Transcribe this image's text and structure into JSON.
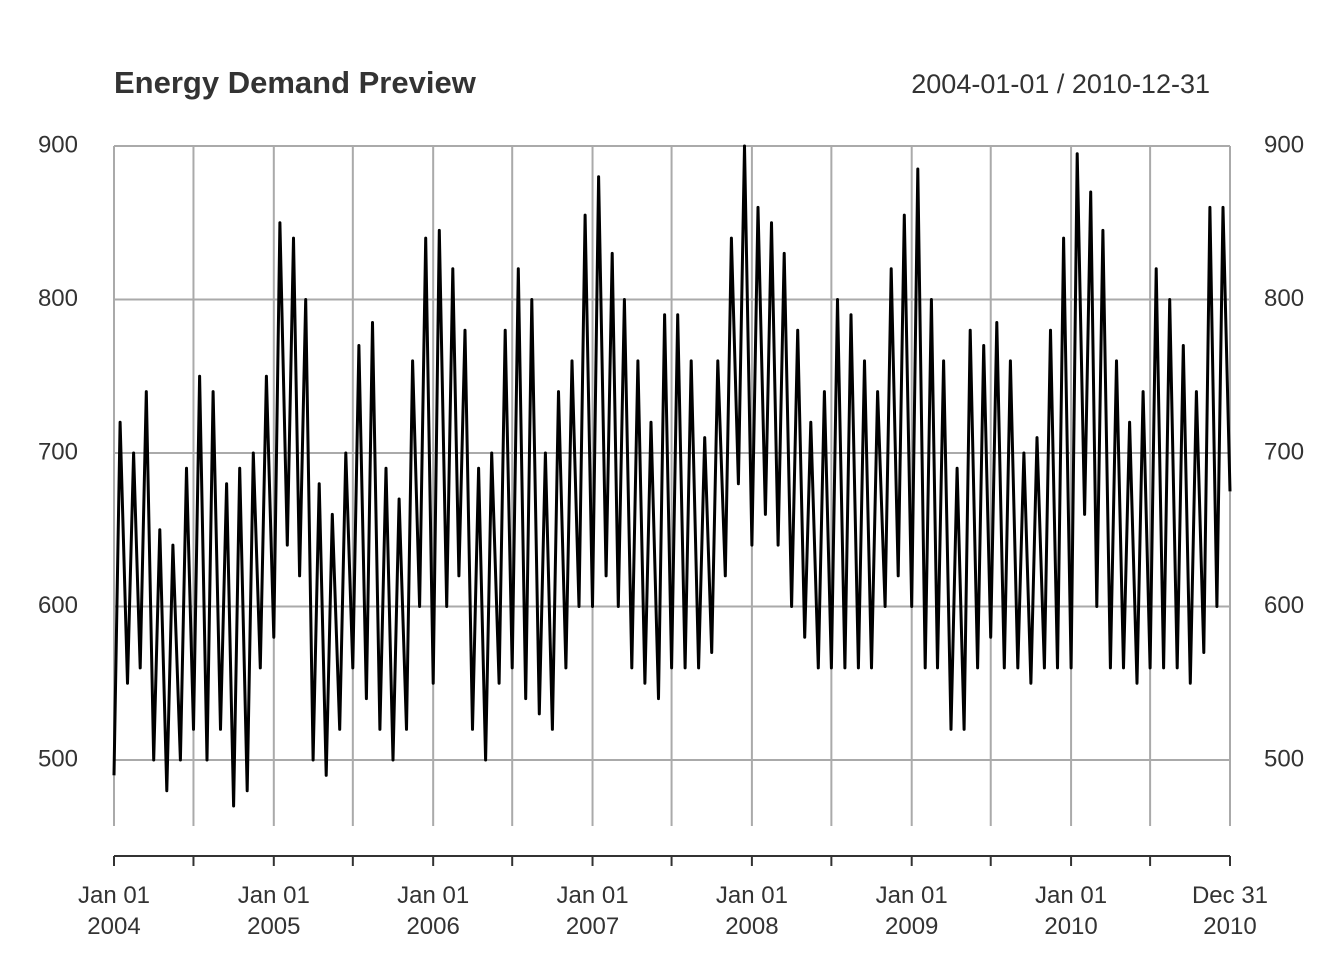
{
  "chart_data": {
    "type": "line",
    "title": "Energy Demand Preview",
    "subtitle": "2004-01-01 / 2010-12-31",
    "color": "#000000",
    "grid": true,
    "xlim": [
      "2004-01-01",
      "2010-12-31"
    ],
    "ylim": [
      457,
      900
    ],
    "yticks": [
      500,
      600,
      700,
      800,
      900
    ],
    "xticks": [
      {
        "value": "2004-01-01",
        "label": "Jan 01\n2004"
      },
      {
        "value": "2004-07-01",
        "label": null
      },
      {
        "value": "2005-01-01",
        "label": "Jan 01\n2005"
      },
      {
        "value": "2005-07-01",
        "label": null
      },
      {
        "value": "2006-01-01",
        "label": "Jan 01\n2006"
      },
      {
        "value": "2006-07-01",
        "label": null
      },
      {
        "value": "2007-01-01",
        "label": "Jan 01\n2007"
      },
      {
        "value": "2007-07-01",
        "label": null
      },
      {
        "value": "2008-01-01",
        "label": "Jan 01\n2008"
      },
      {
        "value": "2008-07-01",
        "label": null
      },
      {
        "value": "2009-01-01",
        "label": "Jan 01\n2009"
      },
      {
        "value": "2009-07-01",
        "label": null
      },
      {
        "value": "2010-01-01",
        "label": "Jan 01\n2010"
      },
      {
        "value": "2010-07-01",
        "label": null
      },
      {
        "value": "2010-12-31",
        "label": "Dec 31\n2010"
      }
    ],
    "x": [
      "2004-01-01",
      "2004-01-15",
      "2004-02-01",
      "2004-02-15",
      "2004-03-01",
      "2004-03-15",
      "2004-04-01",
      "2004-04-15",
      "2004-05-01",
      "2004-05-15",
      "2004-06-01",
      "2004-06-15",
      "2004-07-01",
      "2004-07-15",
      "2004-08-01",
      "2004-08-15",
      "2004-09-01",
      "2004-09-15",
      "2004-10-01",
      "2004-10-15",
      "2004-11-01",
      "2004-11-15",
      "2004-12-01",
      "2004-12-15",
      "2005-01-01",
      "2005-01-15",
      "2005-02-01",
      "2005-02-15",
      "2005-03-01",
      "2005-03-15",
      "2005-04-01",
      "2005-04-15",
      "2005-05-01",
      "2005-05-15",
      "2005-06-01",
      "2005-06-15",
      "2005-07-01",
      "2005-07-15",
      "2005-08-01",
      "2005-08-15",
      "2005-09-01",
      "2005-09-15",
      "2005-10-01",
      "2005-10-15",
      "2005-11-01",
      "2005-11-15",
      "2005-12-01",
      "2005-12-15",
      "2006-01-01",
      "2006-01-15",
      "2006-02-01",
      "2006-02-15",
      "2006-03-01",
      "2006-03-15",
      "2006-04-01",
      "2006-04-15",
      "2006-05-01",
      "2006-05-15",
      "2006-06-01",
      "2006-06-15",
      "2006-07-01",
      "2006-07-15",
      "2006-08-01",
      "2006-08-15",
      "2006-09-01",
      "2006-09-15",
      "2006-10-01",
      "2006-10-15",
      "2006-11-01",
      "2006-11-15",
      "2006-12-01",
      "2006-12-15",
      "2007-01-01",
      "2007-01-15",
      "2007-02-01",
      "2007-02-15",
      "2007-03-01",
      "2007-03-15",
      "2007-04-01",
      "2007-04-15",
      "2007-05-01",
      "2007-05-15",
      "2007-06-01",
      "2007-06-15",
      "2007-07-01",
      "2007-07-15",
      "2007-08-01",
      "2007-08-15",
      "2007-09-01",
      "2007-09-15",
      "2007-10-01",
      "2007-10-15",
      "2007-11-01",
      "2007-11-15",
      "2007-12-01",
      "2007-12-15",
      "2008-01-01",
      "2008-01-15",
      "2008-02-01",
      "2008-02-15",
      "2008-03-01",
      "2008-03-15",
      "2008-04-01",
      "2008-04-15",
      "2008-05-01",
      "2008-05-15",
      "2008-06-01",
      "2008-06-15",
      "2008-07-01",
      "2008-07-15",
      "2008-08-01",
      "2008-08-15",
      "2008-09-01",
      "2008-09-15",
      "2008-10-01",
      "2008-10-15",
      "2008-11-01",
      "2008-11-15",
      "2008-12-01",
      "2008-12-15",
      "2009-01-01",
      "2009-01-15",
      "2009-02-01",
      "2009-02-15",
      "2009-03-01",
      "2009-03-15",
      "2009-04-01",
      "2009-04-15",
      "2009-05-01",
      "2009-05-15",
      "2009-06-01",
      "2009-06-15",
      "2009-07-01",
      "2009-07-15",
      "2009-08-01",
      "2009-08-15",
      "2009-09-01",
      "2009-09-15",
      "2009-10-01",
      "2009-10-15",
      "2009-11-01",
      "2009-11-15",
      "2009-12-01",
      "2009-12-15",
      "2010-01-01",
      "2010-01-15",
      "2010-02-01",
      "2010-02-15",
      "2010-03-01",
      "2010-03-15",
      "2010-04-01",
      "2010-04-15",
      "2010-05-01",
      "2010-05-15",
      "2010-06-01",
      "2010-06-15",
      "2010-07-01",
      "2010-07-15",
      "2010-08-01",
      "2010-08-15",
      "2010-09-01",
      "2010-09-15",
      "2010-10-01",
      "2010-10-15",
      "2010-11-01",
      "2010-11-15",
      "2010-12-01",
      "2010-12-15",
      "2010-12-31"
    ],
    "values": [
      490,
      720,
      550,
      700,
      560,
      740,
      500,
      650,
      480,
      640,
      500,
      690,
      520,
      750,
      500,
      740,
      520,
      680,
      470,
      690,
      480,
      700,
      560,
      750,
      580,
      850,
      640,
      840,
      620,
      800,
      500,
      680,
      490,
      660,
      520,
      700,
      560,
      770,
      540,
      785,
      520,
      690,
      500,
      670,
      520,
      760,
      600,
      840,
      550,
      845,
      600,
      820,
      620,
      780,
      520,
      690,
      500,
      700,
      550,
      780,
      560,
      820,
      540,
      800,
      530,
      700,
      520,
      740,
      560,
      760,
      600,
      855,
      600,
      880,
      620,
      830,
      600,
      800,
      560,
      760,
      550,
      720,
      540,
      790,
      560,
      790,
      560,
      760,
      560,
      710,
      570,
      760,
      620,
      840,
      680,
      900,
      640,
      860,
      660,
      850,
      640,
      830,
      600,
      780,
      580,
      720,
      560,
      740,
      560,
      800,
      560,
      790,
      560,
      760,
      560,
      740,
      600,
      820,
      620,
      855,
      600,
      885,
      560,
      800,
      560,
      760,
      520,
      690,
      520,
      780,
      560,
      770,
      580,
      785,
      560,
      760,
      560,
      700,
      550,
      710,
      560,
      780,
      560,
      840,
      560,
      895,
      660,
      870,
      600,
      845,
      560,
      760,
      560,
      720,
      550,
      740,
      560,
      820,
      560,
      800,
      560,
      770,
      550,
      740,
      570,
      860,
      600,
      860,
      675
    ]
  }
}
